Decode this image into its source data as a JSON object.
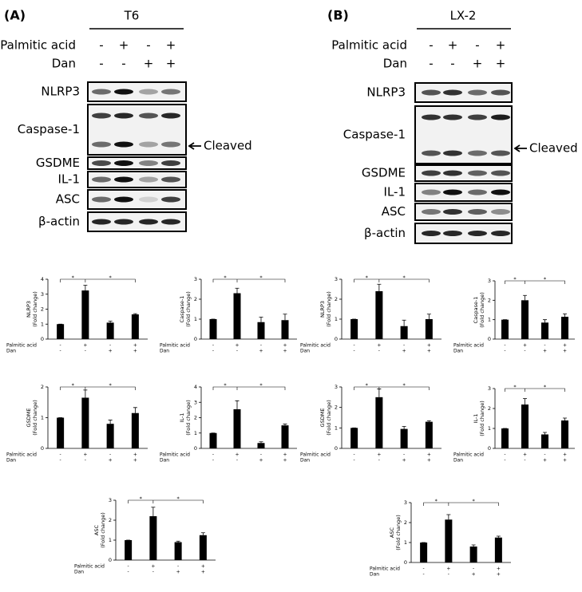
{
  "panels": [
    {
      "label": "(A)",
      "cell_line": "T6",
      "conditions": [
        {
          "name": "Palmitic acid",
          "signs": [
            "-",
            "+",
            "-",
            "+"
          ]
        },
        {
          "name": "Dan",
          "signs": [
            "-",
            "-",
            "+",
            "+"
          ]
        }
      ],
      "blots": [
        "NLRP3",
        "Caspase-1",
        "GSDME",
        "IL-1",
        "ASC",
        "β-actin"
      ],
      "annotation": "Cleaved"
    },
    {
      "label": "(B)",
      "cell_line": "LX-2",
      "conditions": [
        {
          "name": "Palmitic acid",
          "signs": [
            "-",
            "+",
            "-",
            "+"
          ]
        },
        {
          "name": "Dan",
          "signs": [
            "-",
            "-",
            "+",
            "+"
          ]
        }
      ],
      "blots": [
        "NLRP3",
        "Caspase-1",
        "GSDME",
        "IL-1",
        "ASC",
        "β-actin"
      ],
      "annotation": "Cleaved"
    }
  ],
  "chart_data": [
    {
      "type": "bar",
      "ylabel": [
        "NLRP3",
        "(Fold change)"
      ],
      "conditions": [
        {
          "name": "Palmitic acid",
          "signs": [
            "-",
            "+",
            "-",
            "+"
          ]
        },
        {
          "name": "Dan",
          "signs": [
            "-",
            "-",
            "+",
            "+"
          ]
        }
      ],
      "values": [
        1,
        3.25,
        1.1,
        1.65
      ],
      "errors": [
        0,
        0.35,
        0.1,
        0.05
      ],
      "ylim": [
        0,
        4
      ],
      "yticks": [
        0,
        1,
        2,
        3,
        4
      ],
      "significance": [
        "*",
        "*"
      ],
      "color": "#000000"
    },
    {
      "type": "bar",
      "ylabel": [
        "Caspase-1",
        "(Fold change)"
      ],
      "conditions": [
        {
          "name": "Palmitic acid",
          "signs": [
            "-",
            "+",
            "-",
            "+"
          ]
        },
        {
          "name": "Dan",
          "signs": [
            "-",
            "-",
            "+",
            "+"
          ]
        }
      ],
      "values": [
        1,
        2.3,
        0.85,
        0.95
      ],
      "errors": [
        0,
        0.25,
        0.25,
        0.3
      ],
      "ylim": [
        0,
        3
      ],
      "yticks": [
        0,
        1,
        2,
        3
      ],
      "significance": [
        "*",
        "*"
      ],
      "color": "#000000"
    },
    {
      "type": "bar",
      "ylabel": [
        "GSDME",
        "(Fold change)"
      ],
      "conditions": [
        {
          "name": "Palmitic acid",
          "signs": [
            "-",
            "+",
            "-",
            "+"
          ]
        },
        {
          "name": "Dan",
          "signs": [
            "-",
            "-",
            "+",
            "+"
          ]
        }
      ],
      "values": [
        1,
        1.65,
        0.8,
        1.15
      ],
      "errors": [
        0,
        0.25,
        0.12,
        0.18
      ],
      "ylim": [
        0,
        2
      ],
      "yticks": [
        0,
        1,
        2
      ],
      "significance": [
        "*",
        "*"
      ],
      "color": "#000000"
    },
    {
      "type": "bar",
      "ylabel": [
        "IL-1",
        "(Fold change)"
      ],
      "conditions": [
        {
          "name": "Palmitic acid",
          "signs": [
            "-",
            "+",
            "-",
            "+"
          ]
        },
        {
          "name": "Dan",
          "signs": [
            "-",
            "-",
            "+",
            "+"
          ]
        }
      ],
      "values": [
        1,
        2.55,
        0.35,
        1.5
      ],
      "errors": [
        0,
        0.55,
        0.08,
        0.08
      ],
      "ylim": [
        0,
        4
      ],
      "yticks": [
        0,
        1,
        2,
        3,
        4
      ],
      "significance": [
        "*",
        "*"
      ],
      "color": "#000000"
    },
    {
      "type": "bar",
      "ylabel": [
        "ASC",
        "(Fold change)"
      ],
      "conditions": [
        {
          "name": "Palmitic acid",
          "signs": [
            "-",
            "+",
            "-",
            "+"
          ]
        },
        {
          "name": "Dan",
          "signs": [
            "-",
            "-",
            "+",
            "+"
          ]
        }
      ],
      "values": [
        1,
        2.2,
        0.9,
        1.25
      ],
      "errors": [
        0,
        0.45,
        0.05,
        0.12
      ],
      "ylim": [
        0,
        3
      ],
      "yticks": [
        0,
        1,
        2,
        3
      ],
      "significance": [
        "*",
        "*"
      ],
      "color": "#000000"
    },
    {
      "type": "bar",
      "ylabel": [
        "NLRP3",
        "(Fold change)"
      ],
      "conditions": [
        {
          "name": "Palmitic acid",
          "signs": [
            "-",
            "+",
            "-",
            "+"
          ]
        },
        {
          "name": "Dan",
          "signs": [
            "-",
            "-",
            "+",
            "+"
          ]
        }
      ],
      "values": [
        1,
        2.4,
        0.65,
        1
      ],
      "errors": [
        0,
        0.35,
        0.3,
        0.25
      ],
      "ylim": [
        0,
        3
      ],
      "yticks": [
        0,
        1,
        2,
        3
      ],
      "significance": [
        "*",
        "*"
      ],
      "color": "#000000"
    },
    {
      "type": "bar",
      "ylabel": [
        "Caspase-1",
        "(Fold change)"
      ],
      "conditions": [
        {
          "name": "Palmitic acid",
          "signs": [
            "-",
            "+",
            "-",
            "+"
          ]
        },
        {
          "name": "Dan",
          "signs": [
            "-",
            "-",
            "+",
            "+"
          ]
        }
      ],
      "values": [
        1,
        2,
        0.85,
        1.15
      ],
      "errors": [
        0,
        0.25,
        0.15,
        0.15
      ],
      "ylim": [
        0,
        3
      ],
      "yticks": [
        0,
        1,
        2,
        3
      ],
      "significance": [
        "*",
        "*"
      ],
      "color": "#000000"
    },
    {
      "type": "bar",
      "ylabel": [
        "GSDME",
        "(Fold change)"
      ],
      "conditions": [
        {
          "name": "Palmitic acid",
          "signs": [
            "-",
            "+",
            "-",
            "+"
          ]
        },
        {
          "name": "Dan",
          "signs": [
            "-",
            "-",
            "+",
            "+"
          ]
        }
      ],
      "values": [
        1,
        2.5,
        0.95,
        1.3
      ],
      "errors": [
        0,
        0.4,
        0.12,
        0.05
      ],
      "ylim": [
        0,
        3
      ],
      "yticks": [
        0,
        1,
        2,
        3
      ],
      "significance": [
        "*",
        "*"
      ],
      "color": "#000000"
    },
    {
      "type": "bar",
      "ylabel": [
        "IL-1",
        "(Fold change)"
      ],
      "conditions": [
        {
          "name": "Palmitic acid",
          "signs": [
            "-",
            "+",
            "-",
            "+"
          ]
        },
        {
          "name": "Dan",
          "signs": [
            "-",
            "-",
            "+",
            "+"
          ]
        }
      ],
      "values": [
        1,
        2.2,
        0.7,
        1.4
      ],
      "errors": [
        0,
        0.3,
        0.1,
        0.12
      ],
      "ylim": [
        0,
        3
      ],
      "yticks": [
        0,
        1,
        2,
        3
      ],
      "significance": [
        "*",
        "*"
      ],
      "color": "#000000"
    },
    {
      "type": "bar",
      "ylabel": [
        "ASC",
        "(Fold change)"
      ],
      "conditions": [
        {
          "name": "Palmitic acid",
          "signs": [
            "-",
            "+",
            "-",
            "+"
          ]
        },
        {
          "name": "Dan",
          "signs": [
            "-",
            "-",
            "+",
            "+"
          ]
        }
      ],
      "values": [
        1,
        2.15,
        0.8,
        1.25
      ],
      "errors": [
        0,
        0.25,
        0.08,
        0.07
      ],
      "ylim": [
        0,
        3
      ],
      "yticks": [
        0,
        1,
        2,
        3
      ],
      "significance": [
        "*",
        "*"
      ],
      "color": "#000000"
    }
  ]
}
